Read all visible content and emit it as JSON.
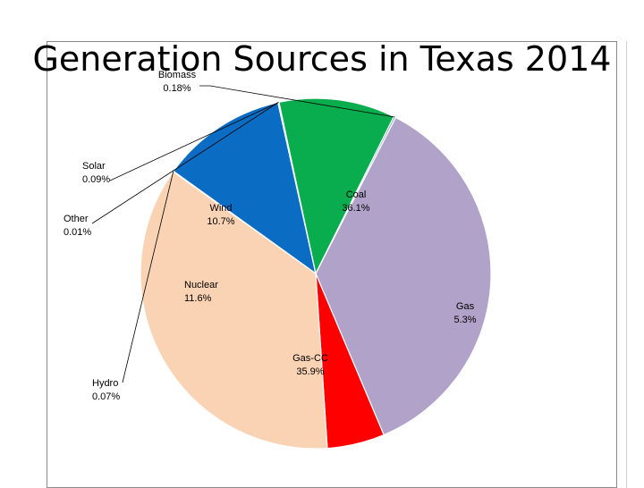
{
  "chart_data": {
    "type": "pie",
    "title": "Generation Sources in Texas 2014",
    "slices": [
      {
        "name": "Coal",
        "value": 36.1,
        "display": "36.1%",
        "color": "#b0a2c8"
      },
      {
        "name": "Gas",
        "value": 5.3,
        "display": "5.3%",
        "color": "#ff0000"
      },
      {
        "name": "Gas-CC",
        "value": 35.9,
        "display": "35.9%",
        "color": "#f9d3b4"
      },
      {
        "name": "Hydro",
        "value": 0.07,
        "display": "0.07%",
        "color": "#4a7a3a"
      },
      {
        "name": "Nuclear",
        "value": 11.6,
        "display": "11.6%",
        "color": "#0a6cc2"
      },
      {
        "name": "Other",
        "value": 0.01,
        "display": "0.01%",
        "color": "#ffffff"
      },
      {
        "name": "Solar",
        "value": 0.09,
        "display": "0.09%",
        "color": "#f0c000"
      },
      {
        "name": "Wind",
        "value": 10.7,
        "display": "10.7%",
        "color": "#0aad4d"
      },
      {
        "name": "Biomass",
        "value": 0.18,
        "display": "0.18%",
        "color": "#7fb2c8"
      }
    ]
  }
}
